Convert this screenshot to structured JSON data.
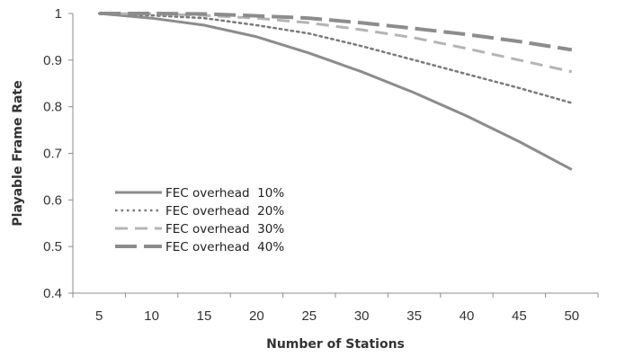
{
  "chart_data": {
    "type": "line",
    "title": "",
    "xlabel": "Number of Stations",
    "ylabel": "Playable Frame Rate",
    "x": [
      5,
      10,
      15,
      20,
      25,
      30,
      35,
      40,
      45,
      50
    ],
    "x_ticks": [
      "5",
      "10",
      "15",
      "20",
      "25",
      "30",
      "35",
      "40",
      "45",
      "50"
    ],
    "ylim": [
      0.4,
      1
    ],
    "y_ticks": [
      "0.4",
      "0.5",
      "0.6",
      "0.7",
      "0.8",
      "0.9",
      "1"
    ],
    "grid": false,
    "legend_position": "lower-left",
    "series": [
      {
        "name": "FEC overhead  10%",
        "color": "#8c8c8c",
        "style": "solid",
        "values": [
          1.0,
          0.99,
          0.975,
          0.95,
          0.915,
          0.875,
          0.83,
          0.78,
          0.725,
          0.665
        ]
      },
      {
        "name": "FEC overhead  20%",
        "color": "#7a7a7a",
        "style": "dotted",
        "values": [
          1.0,
          0.996,
          0.99,
          0.975,
          0.957,
          0.93,
          0.9,
          0.87,
          0.84,
          0.808
        ]
      },
      {
        "name": "FEC overhead  30%",
        "color": "#b4b4b4",
        "style": "dashed",
        "values": [
          1.0,
          0.999,
          0.996,
          0.99,
          0.98,
          0.965,
          0.948,
          0.925,
          0.9,
          0.875
        ]
      },
      {
        "name": "FEC overhead  40%",
        "color": "#8c8c8c",
        "style": "longdash",
        "values": [
          1.0,
          1.0,
          0.999,
          0.995,
          0.99,
          0.98,
          0.968,
          0.955,
          0.94,
          0.922
        ]
      }
    ]
  }
}
